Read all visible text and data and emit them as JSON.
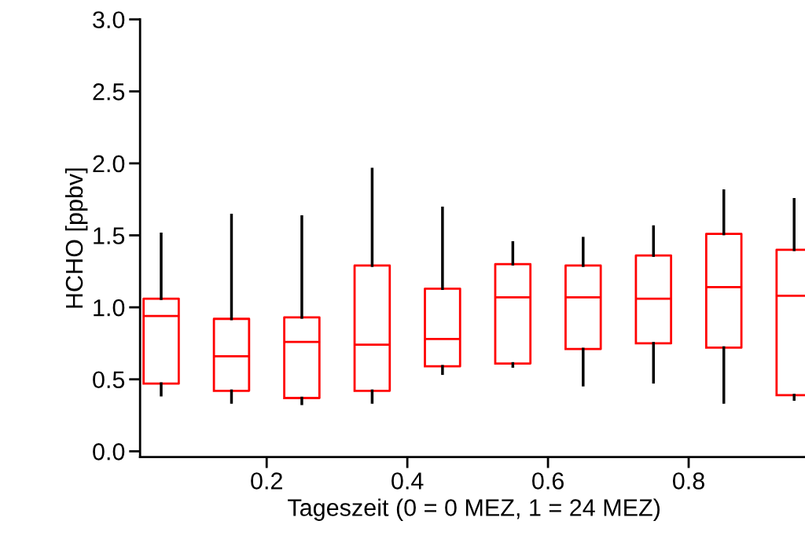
{
  "chart_data": {
    "type": "box",
    "xlabel": "Tageszeit (0 = 0 MEZ, 1 = 24 MEZ)",
    "ylabel": "HCHO [ppbv]",
    "x": [
      0.05,
      0.15,
      0.25,
      0.35,
      0.45,
      0.55,
      0.65,
      0.75,
      0.85,
      0.95
    ],
    "series": [
      {
        "color": "#ff0000",
        "boxes": [
          {
            "low": 0.39,
            "q1": 0.47,
            "median": 0.94,
            "q3": 1.06,
            "high": 1.51
          },
          {
            "low": 0.34,
            "q1": 0.42,
            "median": 0.66,
            "q3": 0.92,
            "high": 1.64
          },
          {
            "low": 0.33,
            "q1": 0.37,
            "median": 0.76,
            "q3": 0.93,
            "high": 1.63
          },
          {
            "low": 0.34,
            "q1": 0.42,
            "median": 0.74,
            "q3": 1.29,
            "high": 1.96
          },
          {
            "low": 0.54,
            "q1": 0.59,
            "median": 0.78,
            "q3": 1.13,
            "high": 1.69
          },
          {
            "low": 0.59,
            "q1": 0.61,
            "median": 1.07,
            "q3": 1.3,
            "high": 1.45
          },
          {
            "low": 0.46,
            "q1": 0.71,
            "median": 1.07,
            "q3": 1.29,
            "high": 1.48
          },
          {
            "low": 0.48,
            "q1": 0.75,
            "median": 1.06,
            "q3": 1.36,
            "high": 1.56
          },
          {
            "low": 0.34,
            "q1": 0.72,
            "median": 1.14,
            "q3": 1.51,
            "high": 1.81
          },
          {
            "low": 0.36,
            "q1": 0.39,
            "median": 1.08,
            "q3": 1.4,
            "high": 1.75
          }
        ]
      }
    ],
    "xlim": [
      0.02,
      0.97
    ],
    "xticks": [
      0.2,
      0.4,
      0.6,
      0.8
    ],
    "ylim": [
      -0.04,
      3.0
    ],
    "yticks": [
      {
        "value": 0,
        "label": "0.0"
      },
      0.5,
      {
        "value": 1,
        "label": "1.0"
      },
      1.5,
      {
        "value": 2,
        "label": "2.0"
      },
      2.5,
      {
        "value": 3,
        "label": "3.0"
      }
    ],
    "grid": false,
    "legend": false
  }
}
